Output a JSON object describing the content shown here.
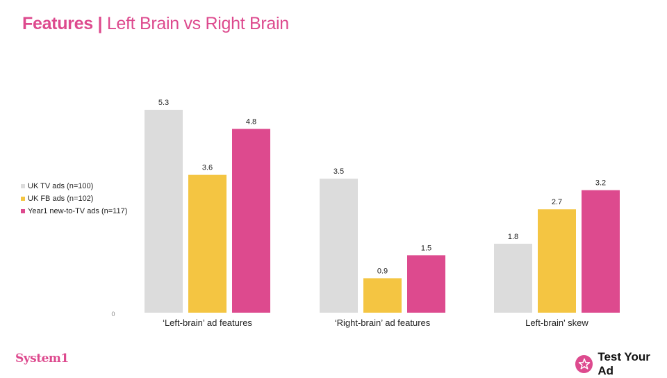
{
  "header": {
    "title_bold": "Features",
    "separator": "|",
    "title_rest": "Left Brain vs Right Brain"
  },
  "chart_data": {
    "type": "bar",
    "categories": [
      "‘Left-brain’ ad features",
      "‘Right-brain’ ad features",
      "Left-brain' skew"
    ],
    "series": [
      {
        "name": "UK TV ads (n=100)",
        "color": "#dcdcdc",
        "values": [
          5.3,
          3.5,
          1.8
        ],
        "labels": [
          "5.3",
          "3.5",
          "1.8"
        ]
      },
      {
        "name": "UK FB ads (n=102)",
        "color": "#f4c542",
        "values": [
          3.6,
          0.9,
          2.7
        ],
        "labels": [
          "3.6",
          "0.9",
          "2.7"
        ]
      },
      {
        "name": "Year1 new-to-TV ads (n=117)",
        "color": "#dd4a8e",
        "values": [
          4.8,
          1.5,
          3.2
        ],
        "labels": [
          "4.8",
          "1.5",
          "3.2"
        ]
      }
    ],
    "ylim": [
      0,
      5.3
    ],
    "y_tick_label": "0",
    "grid": false,
    "legend_position": "left"
  },
  "footer": {
    "left_logo": "System1",
    "right_logo": "Test Your Ad"
  }
}
